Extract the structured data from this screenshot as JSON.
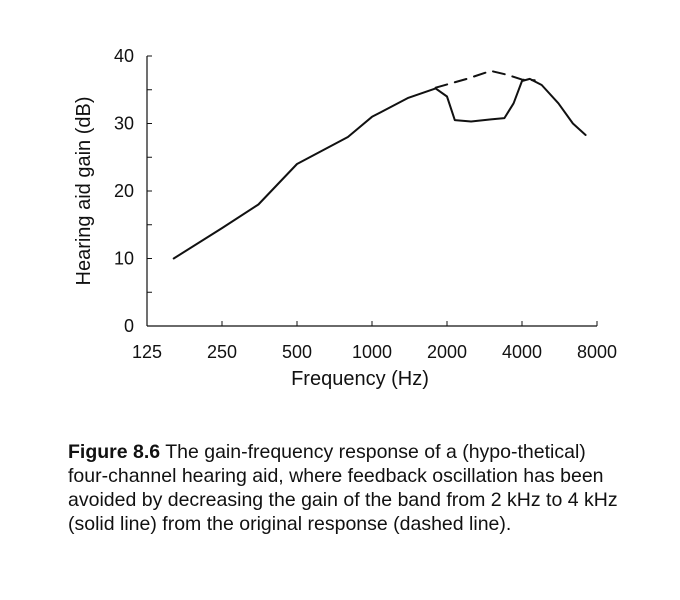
{
  "chart_data": {
    "type": "line",
    "xlabel": "Frequency (Hz)",
    "ylabel": "Hearing aid gain (dB)",
    "x_scale": "log2",
    "xlim": [
      125,
      8000
    ],
    "ylim": [
      0,
      40
    ],
    "x_ticks": [
      125,
      250,
      500,
      1000,
      2000,
      4000,
      8000
    ],
    "x_tick_labels": [
      "125",
      "250",
      "500",
      "1000",
      "2000",
      "4000",
      "8000"
    ],
    "y_ticks": [
      0,
      10,
      20,
      30,
      40
    ],
    "y_tick_labels": [
      "0",
      "10",
      "20",
      "30",
      "40"
    ],
    "grid": false,
    "series": [
      {
        "style": "solid",
        "x": [
          160,
          250,
          350,
          500,
          800,
          1000,
          1400,
          1800,
          2000,
          2150,
          2500,
          3000,
          3400,
          3700,
          4000,
          4300,
          4800,
          5600,
          6400,
          7200
        ],
        "y": [
          10,
          14.5,
          18,
          24,
          28,
          31,
          33.8,
          35.2,
          34,
          30.5,
          30.3,
          30.6,
          30.8,
          33,
          36.3,
          36.6,
          35.7,
          33,
          30,
          28.3
        ]
      },
      {
        "style": "dashed",
        "x": [
          1800,
          2400,
          3000,
          3500,
          4000,
          4500
        ],
        "y": [
          35.3,
          36.6,
          37.8,
          37.2,
          36.5,
          36.4
        ]
      }
    ]
  },
  "caption": {
    "label": "Figure 8.6",
    "text": "The gain-frequency response of a (hypo-thetical) four-channel hearing aid, where feedback oscillation has been avoided by decreasing the gain of the band from 2 kHz to 4 kHz (solid line) from the original response (dashed line)."
  }
}
